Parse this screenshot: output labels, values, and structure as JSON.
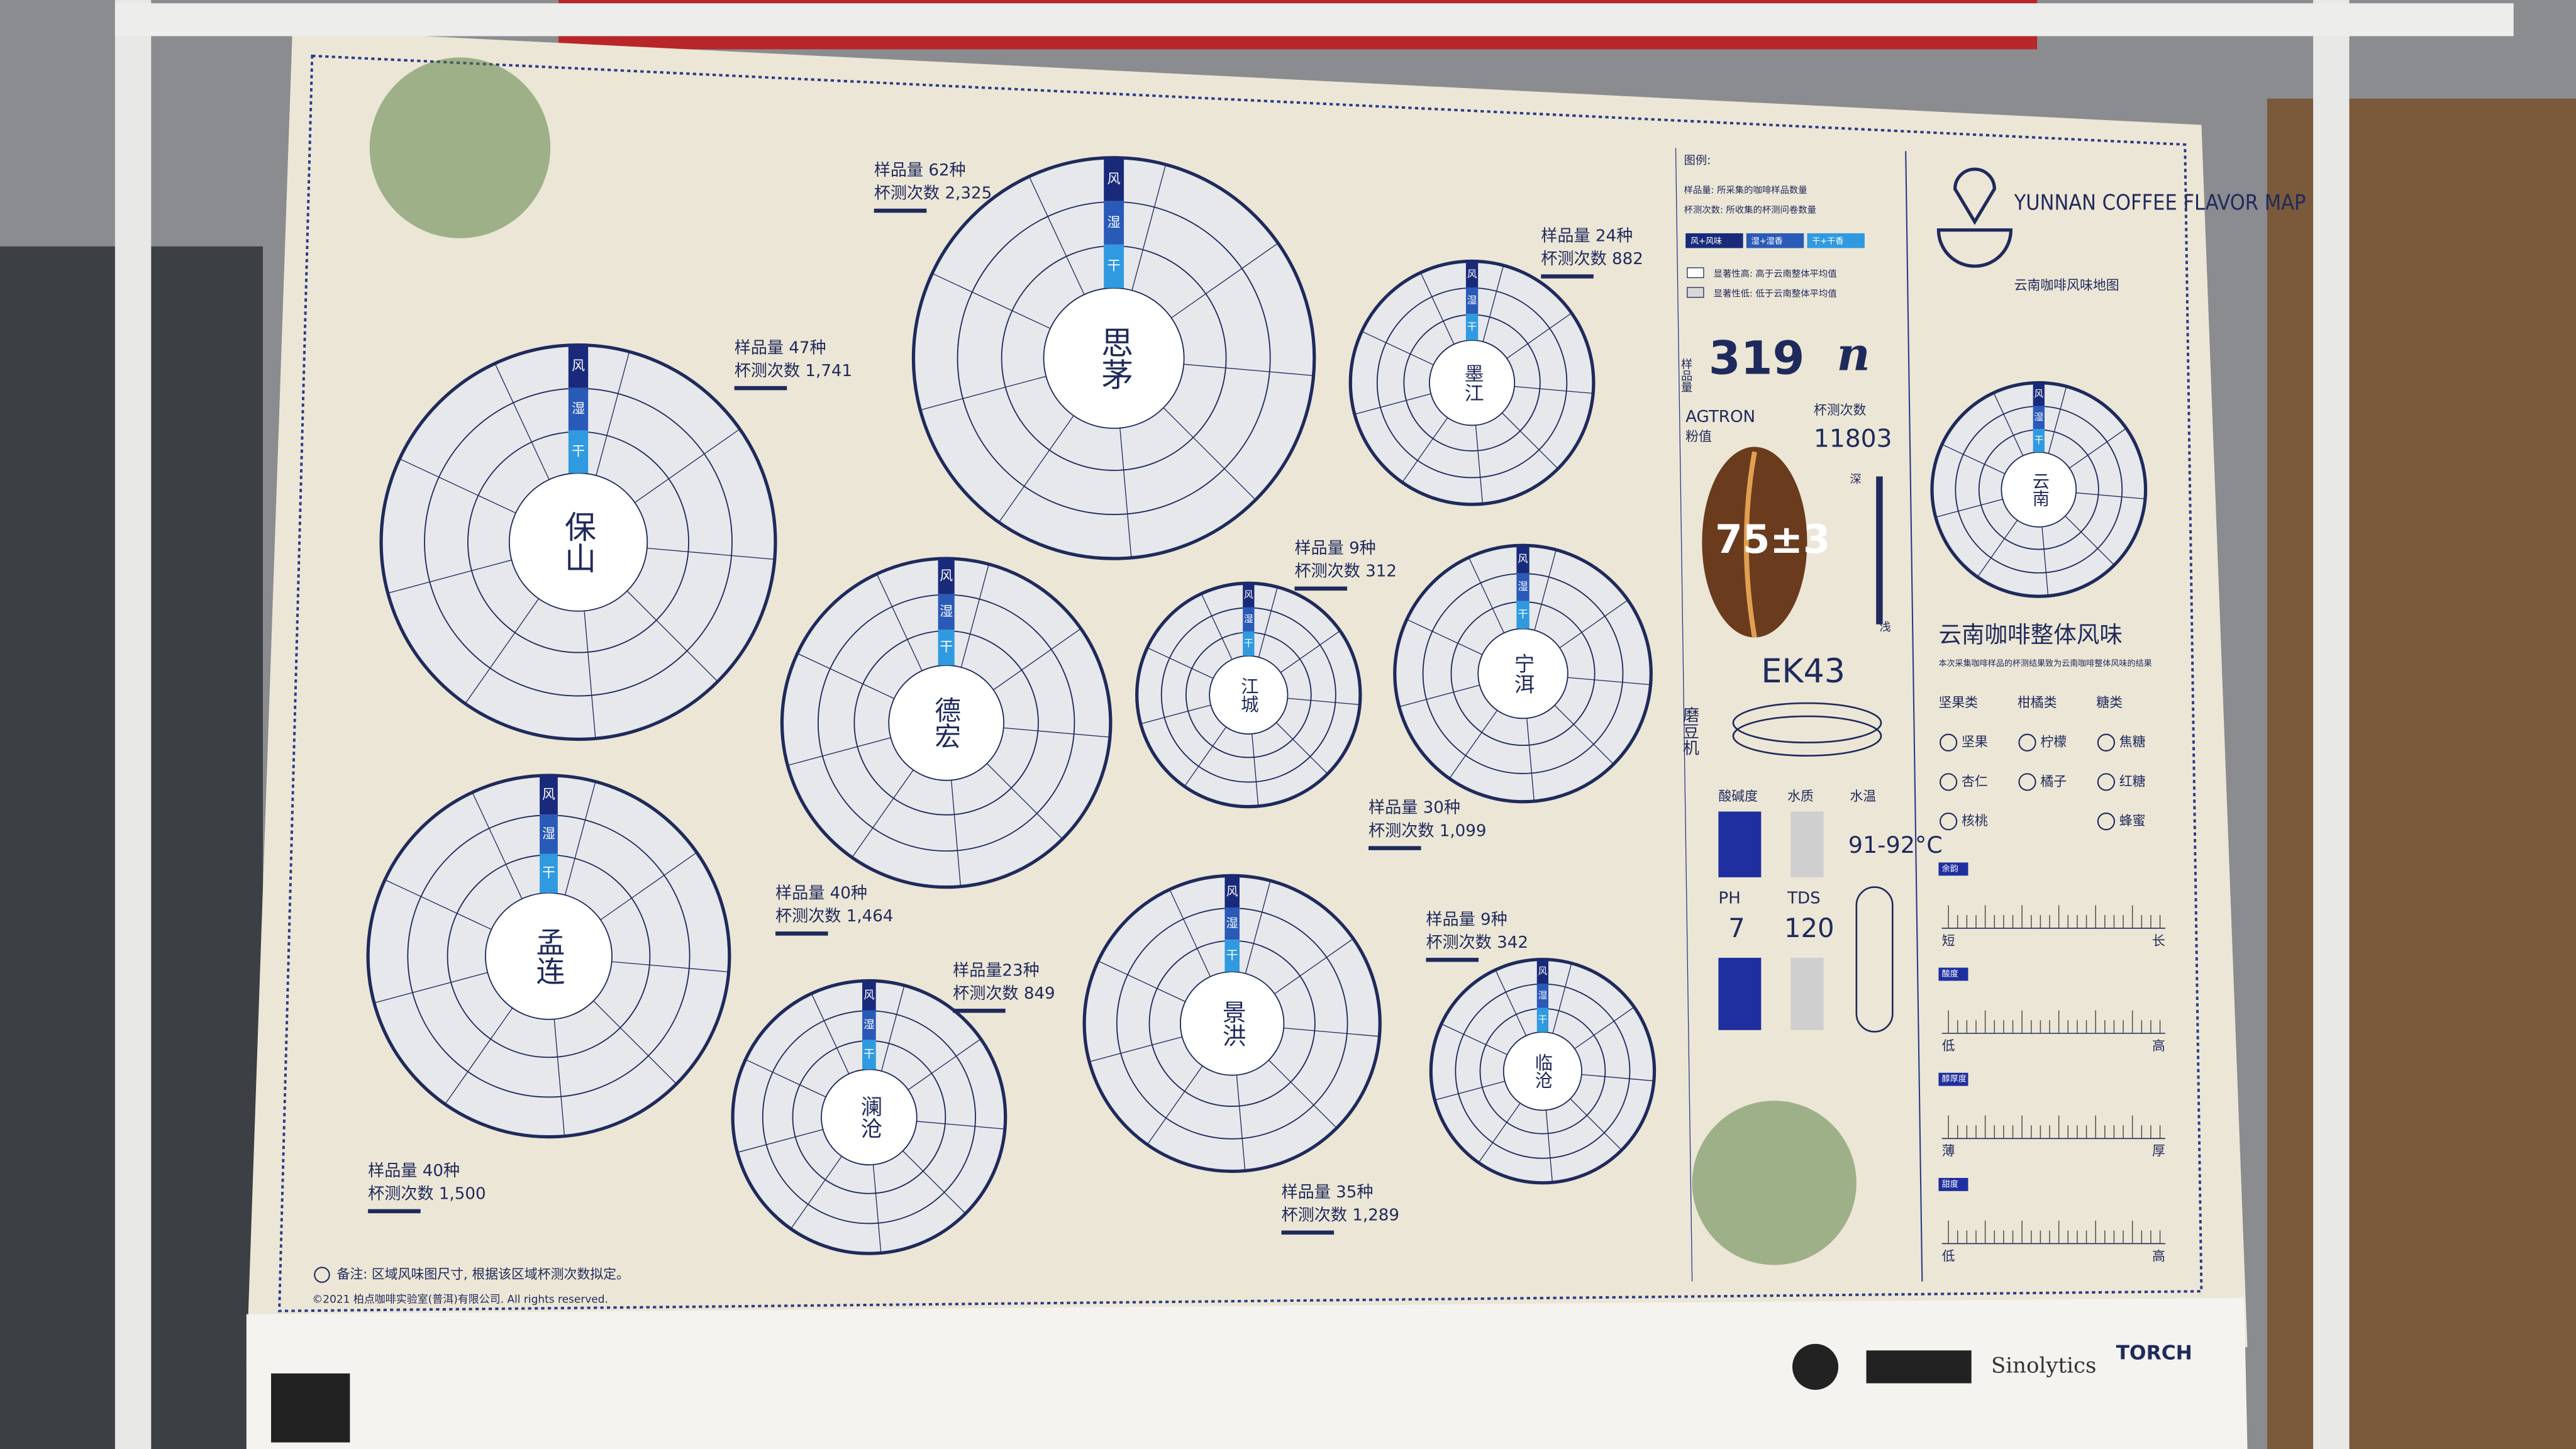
{
  "header": {
    "title_en": "YUNNAN COFFEE FLAVOR MAP",
    "title_cn": "云南咖啡风味地图"
  },
  "ring_labels": [
    "风",
    "湿",
    "干"
  ],
  "regions": [
    {
      "name": "保山",
      "samples": "样品量 47种",
      "cuppings": "杯测次数 1,741"
    },
    {
      "name": "思茅",
      "samples": "样品量 62种",
      "cuppings": "杯测次数 2,325"
    },
    {
      "name": "墨江",
      "samples": "样品量 24种",
      "cuppings": "杯测次数 882"
    },
    {
      "name": "德宏",
      "samples": "样品量 40种",
      "cuppings": "杯测次数 1,464"
    },
    {
      "name": "江城",
      "samples": "样品量 9种",
      "cuppings": "杯测次数 312"
    },
    {
      "name": "宁洱",
      "samples": "样品量 30种",
      "cuppings": "杯测次数 1,099"
    },
    {
      "name": "孟连",
      "samples": "样品量 40种",
      "cuppings": "杯测次数 1,500"
    },
    {
      "name": "澜沧",
      "samples": "样品量23种",
      "cuppings": "杯测次数 849"
    },
    {
      "name": "景洪",
      "samples": "样品量 35种",
      "cuppings": "杯测次数 1,289"
    },
    {
      "name": "临沧",
      "samples": "样品量 9种",
      "cuppings": "杯测次数 342"
    }
  ],
  "legend": {
    "title": "图例:",
    "lines": [
      "样品量: 所采集的咖啡样品数量",
      "杯测次数: 所收集的杯测问卷数量"
    ],
    "keys": [
      "风+风味",
      "湿+湿香",
      "干+干香"
    ],
    "significance": [
      "显著性高: 高于云南整体平均值",
      "显著性低: 低于云南整体平均值"
    ]
  },
  "stats": {
    "samples_label": "样品量",
    "samples": "319",
    "n": "n",
    "cuppings_label": "杯测次数",
    "cuppings": "11803",
    "agtron_label": "AGTRON",
    "agtron_sub": "粉值",
    "agtron": "75±3",
    "dark": "深",
    "light": "浅",
    "grinder_label": "磨豆机",
    "grinder": "EK43",
    "ph_head": "酸碱度",
    "water_head": "水质",
    "temp_head": "水温",
    "temp": "91-92°C",
    "ph_label": "PH",
    "ph": "7",
    "tds_label": "TDS",
    "tds": "120"
  },
  "overall": {
    "name": "云南",
    "title": "云南咖啡整体风味",
    "subtitle": "本次采集咖啡样品的杯测结果致为云南咖啡整体风味的结果",
    "groups": [
      {
        "name": "坚果类",
        "items": [
          "坚果",
          "杏仁",
          "核桃"
        ]
      },
      {
        "name": "柑橘类",
        "items": [
          "柠檬",
          "橘子"
        ]
      },
      {
        "name": "糖类",
        "items": [
          "焦糖",
          "红糖",
          "蜂蜜"
        ]
      }
    ],
    "scales": [
      {
        "name": "余韵",
        "low": "短",
        "high": "长"
      },
      {
        "name": "酸度",
        "low": "低",
        "high": "高"
      },
      {
        "name": "醇厚度",
        "low": "薄",
        "high": "厚"
      },
      {
        "name": "甜度",
        "low": "低",
        "high": "高"
      }
    ]
  },
  "footer": {
    "note": "备注: 区域风味图尺寸, 根据该区域杯测次数拟定。",
    "copyright": "©2021 柏点咖啡实验室(普洱)有限公司. All rights reserved.",
    "sponsors": [
      "Sinolytics",
      "TORCH"
    ]
  }
}
